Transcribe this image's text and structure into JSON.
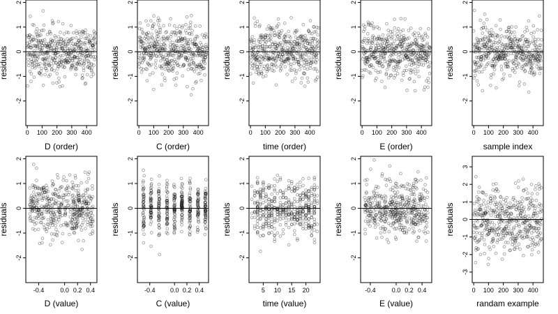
{
  "chart_data": [
    {
      "type": "scatter",
      "id": "p1",
      "xlabel": "D (order)",
      "ylabel": "residuals",
      "xlim": [
        -10,
        470
      ],
      "ylim": [
        -3.0,
        2.1
      ],
      "xticks": [
        0,
        100,
        200,
        300,
        400
      ],
      "xtick_labels": [
        "0",
        "100",
        "200",
        "300",
        "400"
      ],
      "yticks": [
        -2,
        -1,
        0,
        1,
        2
      ],
      "ytick_labels": [
        "-2",
        "-1",
        "0",
        "1",
        "2"
      ],
      "hline": 0,
      "mode": "index",
      "points": [],
      "marker": {
        "shape": "open-circle",
        "color": "#000000",
        "alpha": 0.4
      }
    },
    {
      "type": "scatter",
      "id": "p2",
      "xlabel": "C (order)",
      "ylabel": "residuals",
      "xlim": [
        -10,
        470
      ],
      "ylim": [
        -3.0,
        2.1
      ],
      "xticks": [
        0,
        100,
        200,
        300,
        400
      ],
      "xtick_labels": [
        "0",
        "100",
        "200",
        "300",
        "400"
      ],
      "yticks": [
        -2,
        -1,
        0,
        1,
        2
      ],
      "ytick_labels": [
        "-2",
        "-1",
        "0",
        "1",
        "2"
      ],
      "hline": 0,
      "mode": "index",
      "points": [],
      "marker": {
        "shape": "open-circle",
        "color": "#000000",
        "alpha": 0.4
      }
    },
    {
      "type": "scatter",
      "id": "p3",
      "xlabel": "time (order)",
      "ylabel": "residuals",
      "xlim": [
        -10,
        470
      ],
      "ylim": [
        -3.0,
        2.1
      ],
      "xticks": [
        0,
        100,
        200,
        300,
        400
      ],
      "xtick_labels": [
        "0",
        "100",
        "200",
        "300",
        "400"
      ],
      "yticks": [
        -2,
        -1,
        0,
        1,
        2
      ],
      "ytick_labels": [
        "-2",
        "-1",
        "0",
        "1",
        "2"
      ],
      "hline": 0,
      "mode": "index",
      "points": [],
      "marker": {
        "shape": "open-circle",
        "color": "#000000",
        "alpha": 0.4
      }
    },
    {
      "type": "scatter",
      "id": "p4",
      "xlabel": "E (order)",
      "ylabel": "residuals",
      "xlim": [
        -10,
        470
      ],
      "ylim": [
        -3.0,
        2.1
      ],
      "xticks": [
        0,
        100,
        200,
        300,
        400
      ],
      "xtick_labels": [
        "0",
        "100",
        "200",
        "300",
        "400"
      ],
      "yticks": [
        -2,
        -1,
        0,
        1,
        2
      ],
      "ytick_labels": [
        "-2",
        "-1",
        "0",
        "1",
        "2"
      ],
      "hline": 0,
      "mode": "index",
      "points": [],
      "marker": {
        "shape": "open-circle",
        "color": "#000000",
        "alpha": 0.4
      }
    },
    {
      "type": "scatter",
      "id": "p5",
      "xlabel": "sample index",
      "ylabel": "residuals",
      "xlim": [
        -10,
        470
      ],
      "ylim": [
        -3.0,
        2.1
      ],
      "xticks": [
        0,
        100,
        200,
        300,
        400
      ],
      "xtick_labels": [
        "0",
        "100",
        "200",
        "300",
        "400"
      ],
      "yticks": [
        -2,
        -1,
        0,
        1,
        2
      ],
      "ytick_labels": [
        "-2",
        "-1",
        "0",
        "1",
        "2"
      ],
      "hline": 0,
      "mode": "index",
      "points": [],
      "marker": {
        "shape": "open-circle",
        "color": "#000000",
        "alpha": 0.4
      }
    },
    {
      "type": "scatter",
      "id": "p6",
      "xlabel": "D (value)",
      "ylabel": "residuals",
      "xlim": [
        -0.6,
        0.5
      ],
      "ylim": [
        -3.0,
        2.1
      ],
      "xticks": [
        -0.4,
        0.0,
        0.2,
        0.4
      ],
      "xtick_labels": [
        "-0.4",
        "0.0",
        "0.2",
        "0.4"
      ],
      "yticks": [
        -2,
        -1,
        0,
        1,
        2
      ],
      "ytick_labels": [
        "-2",
        "-1",
        "0",
        "1",
        "2"
      ],
      "hline": 0,
      "mode": "value",
      "points": [],
      "marker": {
        "shape": "open-circle",
        "color": "#000000",
        "alpha": 0.4
      }
    },
    {
      "type": "scatter",
      "id": "p7",
      "xlabel": "C (value)",
      "ylabel": "residuals",
      "xlim": [
        -0.6,
        0.55
      ],
      "ylim": [
        -3.0,
        2.1
      ],
      "xticks": [
        -0.4,
        0.0,
        0.2,
        0.4
      ],
      "xtick_labels": [
        "-0.4",
        "0.0",
        "0.2",
        "0.4"
      ],
      "yticks": [
        -2,
        -1,
        0,
        1,
        2
      ],
      "ytick_labels": [
        "-2",
        "-1",
        "0",
        "1",
        "2"
      ],
      "hline": 0,
      "mode": "value",
      "points": [],
      "marker": {
        "shape": "open-circle",
        "color": "#000000",
        "alpha": 0.4
      }
    },
    {
      "type": "scatter",
      "id": "p8",
      "xlabel": "time (value)",
      "ylabel": "residuals",
      "xlim": [
        0,
        25
      ],
      "ylim": [
        -3.0,
        2.1
      ],
      "xticks": [
        5,
        10,
        15,
        20
      ],
      "xtick_labels": [
        "5",
        "10",
        "15",
        "20"
      ],
      "yticks": [
        -2,
        -1,
        0,
        1,
        2
      ],
      "ytick_labels": [
        "-2",
        "-1",
        "0",
        "1",
        "2"
      ],
      "hline": 0,
      "mode": "value",
      "points": [],
      "marker": {
        "shape": "open-circle",
        "color": "#000000",
        "alpha": 0.4
      }
    },
    {
      "type": "scatter",
      "id": "p9",
      "xlabel": "E (value)",
      "ylabel": "residuals",
      "xlim": [
        -0.55,
        0.55
      ],
      "ylim": [
        -3.0,
        2.1
      ],
      "xticks": [
        -0.4,
        0.0,
        0.2,
        0.4
      ],
      "xtick_labels": [
        "-0.4",
        "0.0",
        "0.2",
        "0.4"
      ],
      "yticks": [
        -2,
        -1,
        0,
        1,
        2
      ],
      "ytick_labels": [
        "-2",
        "-1",
        "0",
        "1",
        "2"
      ],
      "hline": 0,
      "mode": "value",
      "points": [],
      "marker": {
        "shape": "open-circle",
        "color": "#000000",
        "alpha": 0.4
      }
    },
    {
      "type": "scatter",
      "id": "p10",
      "xlabel": "randam example",
      "ylabel": "residuals",
      "xlim": [
        -10,
        470
      ],
      "ylim": [
        -3.6,
        3.6
      ],
      "xticks": [
        0,
        100,
        200,
        300,
        400
      ],
      "xtick_labels": [
        "0",
        "100",
        "200",
        "300",
        "400"
      ],
      "yticks": [
        -3,
        -2,
        -1,
        0,
        1,
        2,
        3
      ],
      "ytick_labels": [
        "-3",
        "-2",
        "-1",
        "0",
        "1",
        "2",
        "3"
      ],
      "hline": 0,
      "mode": "index",
      "points": [],
      "marker": {
        "shape": "open-circle",
        "color": "#000000",
        "alpha": 0.4
      }
    }
  ]
}
